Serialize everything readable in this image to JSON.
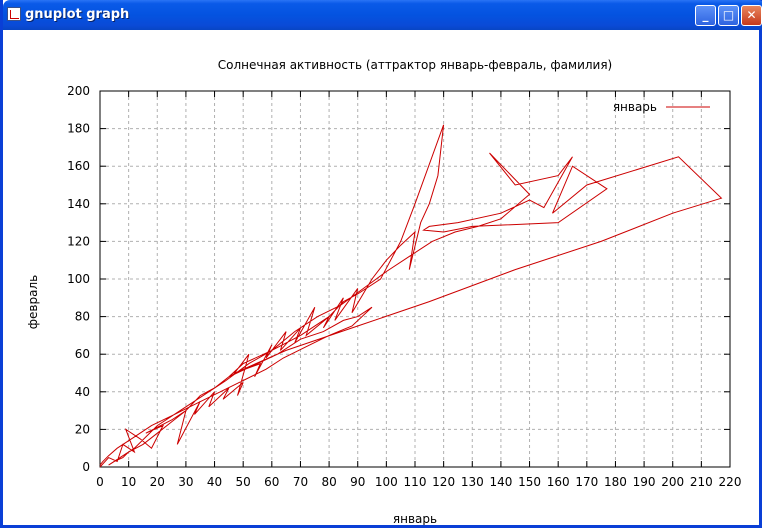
{
  "window": {
    "title": "gnuplot graph",
    "buttons": {
      "minimize": "_",
      "maximize": "□",
      "close": "✕"
    }
  },
  "chart_data": {
    "type": "line",
    "title": "Солнечная активность (аттрактор январь-февраль, фамилия)",
    "xlabel": "январь",
    "ylabel": "февраль",
    "xlim": [
      0,
      220
    ],
    "ylim": [
      0,
      200
    ],
    "xticks": [
      0,
      10,
      20,
      30,
      40,
      50,
      60,
      70,
      80,
      90,
      100,
      110,
      120,
      130,
      140,
      150,
      160,
      170,
      180,
      190,
      200,
      210,
      220
    ],
    "yticks": [
      0,
      20,
      40,
      60,
      80,
      100,
      120,
      140,
      160,
      180,
      200
    ],
    "grid": true,
    "legend": "top-right",
    "series_color": "#cc0000",
    "series": [
      {
        "name": "январь",
        "x": [
          0,
          3,
          6,
          8,
          12,
          9,
          14,
          18,
          22,
          16,
          25,
          30,
          27,
          35,
          33,
          40,
          38,
          45,
          43,
          50,
          48,
          52,
          47,
          56,
          54,
          60,
          58,
          65,
          63,
          70,
          68,
          75,
          72,
          80,
          78,
          85,
          82,
          90,
          88,
          95,
          100,
          105,
          110,
          108,
          112,
          115,
          118,
          120,
          110,
          105,
          98,
          90,
          85,
          80,
          70,
          60,
          50,
          45,
          40,
          35,
          30,
          25,
          20,
          15,
          10,
          8,
          5,
          3,
          12,
          20,
          28,
          36,
          44,
          52,
          60,
          68,
          76,
          84,
          92,
          100,
          108,
          116,
          124,
          132,
          140,
          150,
          136,
          145,
          160,
          165,
          155,
          150,
          140,
          125,
          115,
          113,
          120,
          130,
          160,
          177,
          165,
          158,
          170,
          202,
          217,
          200,
          175,
          145,
          115,
          90,
          65,
          50,
          45,
          55,
          62,
          70,
          78,
          85,
          90,
          95,
          88,
          80,
          72,
          64,
          58,
          50,
          42,
          34,
          26,
          18,
          12,
          6,
          3,
          1,
          0
        ],
        "y": [
          0,
          5,
          3,
          12,
          8,
          20,
          15,
          10,
          22,
          18,
          25,
          30,
          12,
          35,
          28,
          40,
          32,
          42,
          36,
          45,
          38,
          60,
          50,
          55,
          48,
          65,
          58,
          72,
          62,
          74,
          66,
          85,
          70,
          80,
          74,
          90,
          78,
          95,
          82,
          100,
          110,
          118,
          125,
          105,
          130,
          140,
          155,
          182,
          140,
          120,
          100,
          92,
          88,
          80,
          70,
          62,
          55,
          48,
          42,
          38,
          30,
          24,
          18,
          12,
          8,
          5,
          3,
          1,
          10,
          22,
          30,
          38,
          46,
          55,
          62,
          72,
          80,
          86,
          95,
          104,
          112,
          120,
          125,
          128,
          132,
          145,
          167,
          150,
          155,
          165,
          138,
          142,
          135,
          130,
          128,
          126,
          125,
          128,
          130,
          148,
          160,
          135,
          150,
          165,
          143,
          135,
          120,
          105,
          88,
          75,
          62,
          52,
          48,
          55,
          60,
          68,
          72,
          78,
          80,
          85,
          75,
          70,
          64,
          58,
          52,
          46,
          40,
          34,
          28,
          22,
          16,
          10,
          6,
          3,
          1
        ]
      }
    ]
  }
}
